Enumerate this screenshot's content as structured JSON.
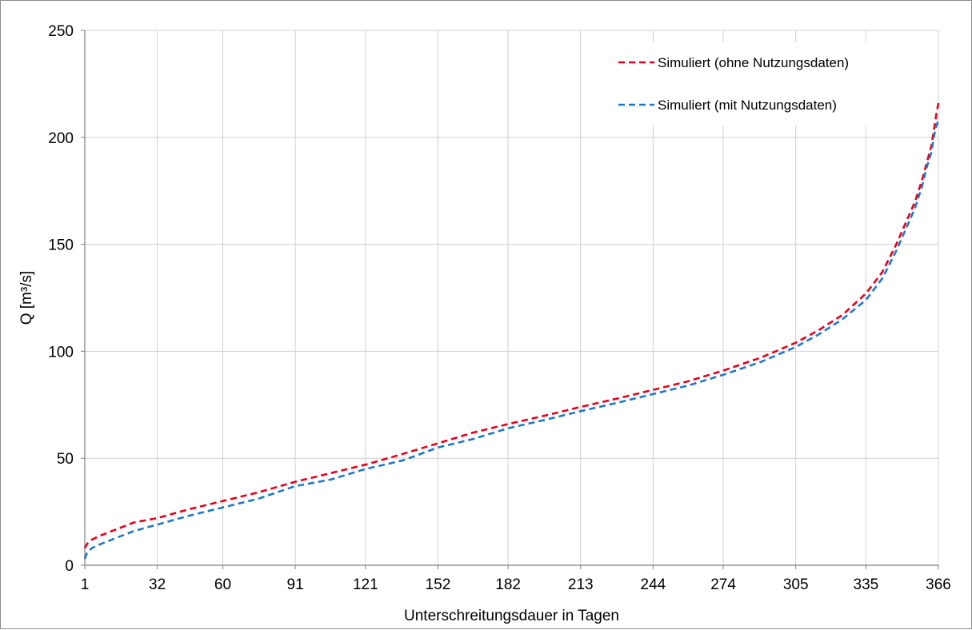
{
  "chart_data": {
    "type": "line",
    "title": "",
    "xlabel": "Unterschreitungsdauer in Tagen",
    "ylabel": "Q [m³/s]",
    "xlim": [
      1,
      366
    ],
    "ylim": [
      0,
      250
    ],
    "x_ticks": [
      1,
      32,
      60,
      91,
      121,
      152,
      182,
      213,
      244,
      274,
      305,
      335,
      366
    ],
    "y_ticks": [
      0,
      50,
      100,
      150,
      200,
      250
    ],
    "grid": true,
    "legend_position": "top-right",
    "series": [
      {
        "name": "Simuliert (ohne Nutzungsdaten)",
        "color": "#e8001c",
        "dash": "dashed",
        "x": [
          1,
          2,
          4,
          8,
          15,
          22,
          32,
          45,
          60,
          75,
          91,
          106,
          121,
          137,
          152,
          167,
          182,
          198,
          213,
          229,
          244,
          259,
          274,
          290,
          305,
          315,
          325,
          335,
          342,
          348,
          352,
          356,
          359,
          361,
          363,
          364,
          365,
          366
        ],
        "y": [
          8,
          10,
          12,
          14,
          17,
          20,
          22,
          26,
          30,
          34,
          39,
          43,
          47,
          52,
          57,
          62,
          66,
          70,
          74,
          78,
          82,
          86,
          91,
          97,
          104,
          110,
          117,
          127,
          137,
          150,
          160,
          170,
          180,
          188,
          196,
          203,
          210,
          216
        ]
      },
      {
        "name": "Simuliert (mit Nutzungsdaten)",
        "color": "#1f77c8",
        "dash": "dashed",
        "x": [
          1,
          2,
          4,
          8,
          15,
          22,
          32,
          45,
          60,
          75,
          91,
          106,
          121,
          137,
          152,
          167,
          182,
          198,
          213,
          229,
          244,
          259,
          274,
          290,
          305,
          315,
          325,
          335,
          342,
          348,
          352,
          356,
          359,
          361,
          363,
          364,
          365,
          366
        ],
        "y": [
          3,
          6,
          8,
          10,
          13,
          16,
          19,
          23,
          27,
          31,
          37,
          40,
          45,
          49,
          55,
          59,
          64,
          68,
          72,
          76,
          80,
          84,
          89,
          95,
          102,
          108,
          115,
          124,
          134,
          147,
          157,
          167,
          177,
          186,
          193,
          200,
          205,
          208
        ]
      }
    ]
  }
}
